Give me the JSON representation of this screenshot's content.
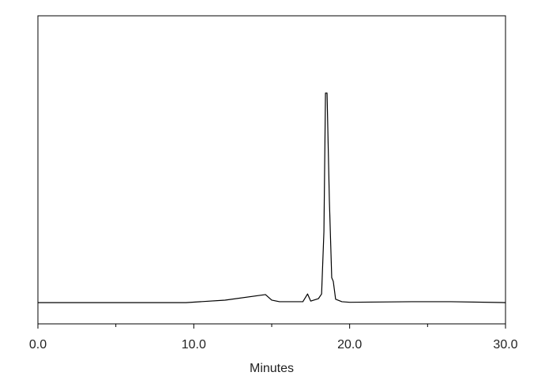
{
  "chart_data": {
    "type": "line",
    "xlabel": "Minutes",
    "x": [
      0,
      9.5,
      12,
      14.6,
      15.0,
      15.5,
      17.0,
      17.3,
      17.5,
      18.0,
      18.2,
      18.35,
      18.45,
      18.55,
      18.7,
      18.85,
      18.95,
      19.1,
      19.5,
      20,
      24,
      26.5,
      30
    ],
    "series": [
      {
        "color": "#000000",
        "values": [
          6.9,
          6.9,
          7.7,
          9.5,
          7.7,
          7.2,
          7.2,
          9.7,
          7.4,
          8.2,
          9.7,
          30,
          74.9,
          74.9,
          40,
          15,
          13.8,
          8,
          7.2,
          7.0,
          7.2,
          7.2,
          6.9
        ]
      }
    ],
    "xlim": [
      0,
      30
    ],
    "ylim": [
      0,
      100
    ],
    "xticks": [
      {
        "value": 0,
        "label": "0.0"
      },
      {
        "value": 10,
        "label": "10.0"
      },
      {
        "value": 20,
        "label": "20.0"
      },
      {
        "value": 30,
        "label": "30.0"
      }
    ],
    "xminorticks": [
      5,
      15,
      25
    ]
  }
}
